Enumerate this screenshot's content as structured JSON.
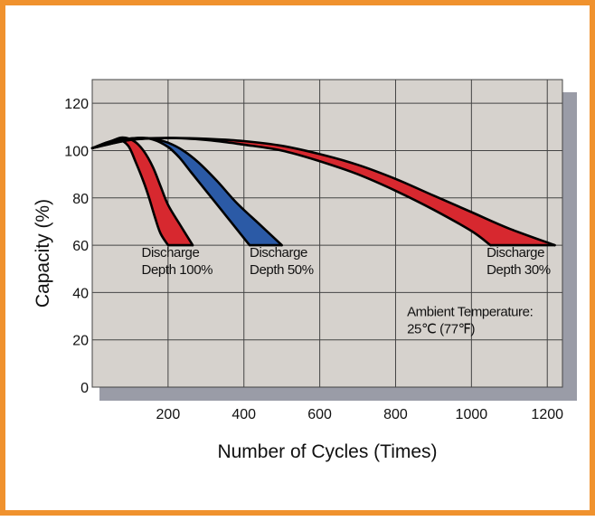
{
  "colors": {
    "frame": "#f0922e",
    "plot_bg": "#d6d2cd",
    "shadow": "#9a9ca7",
    "grid": "#444444",
    "red": "#d7282f",
    "blue": "#2b5aa6",
    "curve": "#000000"
  },
  "chart_data": {
    "type": "area",
    "title": "",
    "xlabel": "Number of Cycles (Times)",
    "ylabel": "Capacity (%)",
    "xlim": [
      0,
      1240
    ],
    "ylim": [
      0,
      130
    ],
    "x_ticks": [
      200,
      400,
      600,
      800,
      1000,
      1200
    ],
    "y_ticks": [
      0,
      20,
      40,
      60,
      80,
      100,
      120
    ],
    "x_grid": [
      200,
      400,
      600,
      800,
      1000,
      1200
    ],
    "y_grid": [
      20,
      40,
      60,
      80,
      100,
      120
    ],
    "grid": true,
    "series": [
      {
        "name": "Discharge Depth 100%",
        "color": "#d7282f",
        "upper": [
          [
            0,
            101
          ],
          [
            50,
            104
          ],
          [
            80,
            105.5
          ],
          [
            110,
            104
          ],
          [
            135,
            100
          ],
          [
            160,
            93
          ],
          [
            180,
            85
          ],
          [
            200,
            77
          ],
          [
            230,
            69
          ],
          [
            265,
            60
          ]
        ],
        "lower": [
          [
            0,
            101
          ],
          [
            40,
            103.5
          ],
          [
            70,
            104.5
          ],
          [
            95,
            102
          ],
          [
            115,
            95
          ],
          [
            135,
            87
          ],
          [
            150,
            80
          ],
          [
            165,
            72
          ],
          [
            180,
            65
          ],
          [
            200,
            60
          ]
        ]
      },
      {
        "name": "Discharge Depth 50%",
        "color": "#2b5aa6",
        "upper": [
          [
            0,
            101
          ],
          [
            60,
            104
          ],
          [
            120,
            105.3
          ],
          [
            160,
            105
          ],
          [
            200,
            103.3
          ],
          [
            240,
            100
          ],
          [
            280,
            95
          ],
          [
            330,
            87
          ],
          [
            380,
            78
          ],
          [
            440,
            69
          ],
          [
            500,
            60
          ]
        ],
        "lower": [
          [
            0,
            101
          ],
          [
            60,
            104
          ],
          [
            120,
            105.3
          ],
          [
            160,
            104.7
          ],
          [
            200,
            101.5
          ],
          [
            230,
            97
          ],
          [
            260,
            91
          ],
          [
            300,
            83
          ],
          [
            340,
            75
          ],
          [
            380,
            67
          ],
          [
            415,
            60
          ]
        ]
      },
      {
        "name": "Discharge Depth 30%",
        "color": "#d7282f",
        "upper": [
          [
            0,
            101
          ],
          [
            100,
            104.5
          ],
          [
            200,
            105.3
          ],
          [
            300,
            105
          ],
          [
            400,
            104
          ],
          [
            500,
            102
          ],
          [
            600,
            98.5
          ],
          [
            700,
            94
          ],
          [
            800,
            88
          ],
          [
            900,
            81
          ],
          [
            1000,
            74
          ],
          [
            1100,
            67
          ],
          [
            1220,
            60
          ]
        ],
        "lower": [
          [
            0,
            101
          ],
          [
            100,
            104.5
          ],
          [
            200,
            105.3
          ],
          [
            300,
            104.5
          ],
          [
            400,
            102.5
          ],
          [
            500,
            100
          ],
          [
            600,
            95.5
          ],
          [
            700,
            90
          ],
          [
            800,
            83
          ],
          [
            900,
            75
          ],
          [
            1000,
            66
          ],
          [
            1050,
            60
          ]
        ]
      }
    ],
    "annotations": [
      {
        "lines": [
          "Discharge",
          "Depth 100%"
        ],
        "x": 130,
        "y": 55
      },
      {
        "lines": [
          "Discharge",
          "Depth 50%"
        ],
        "x": 415,
        "y": 55
      },
      {
        "lines": [
          "Discharge",
          "Depth 30%"
        ],
        "x": 1040,
        "y": 55
      },
      {
        "lines": [
          "Ambient Temperature:",
          "25℃ (77℉)"
        ],
        "x": 830,
        "y": 30
      }
    ]
  }
}
